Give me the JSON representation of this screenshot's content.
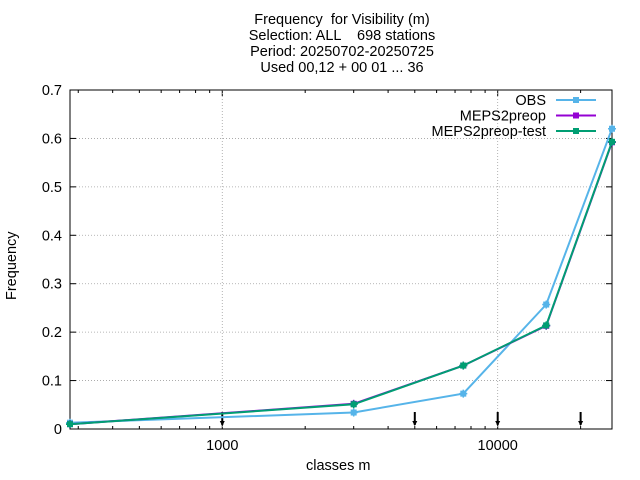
{
  "title_lines": [
    "Frequency  for Visibility (m)",
    "Selection: ALL    698 stations",
    "Period: 20250702-20250725",
    "Used 00,12 + 00 01 ... 36"
  ],
  "chart_data": {
    "type": "line",
    "title": "Frequency  for Visibility (m)",
    "xlabel": "classes m",
    "ylabel": "Frequency",
    "x_scale": "log",
    "xlim": [
      280,
      26000
    ],
    "ylim": [
      0,
      0.7
    ],
    "grid": true,
    "legend_position": "top-right",
    "x_ticks": [
      {
        "value": 1000,
        "label": "1000"
      },
      {
        "value": 10000,
        "label": "10000"
      }
    ],
    "y_ticks": [
      {
        "value": 0,
        "label": "0"
      },
      {
        "value": 0.1,
        "label": "0.1"
      },
      {
        "value": 0.2,
        "label": "0.2"
      },
      {
        "value": 0.3,
        "label": "0.3"
      },
      {
        "value": 0.4,
        "label": "0.4"
      },
      {
        "value": 0.5,
        "label": "0.5"
      },
      {
        "value": 0.6,
        "label": "0.6"
      },
      {
        "value": 0.7,
        "label": "0.7"
      }
    ],
    "class_boundaries": [
      1000,
      5000,
      10000,
      20000
    ],
    "series": [
      {
        "name": "OBS",
        "color": "#56b4e9",
        "x": [
          280,
          3000,
          7500,
          15000,
          26000
        ],
        "y": [
          0.013,
          0.034,
          0.073,
          0.257,
          0.62
        ]
      },
      {
        "name": "MEPS2preop",
        "color": "#9400d3",
        "x": [
          280,
          3000,
          7500,
          15000,
          26000
        ],
        "y": [
          0.01,
          0.052,
          0.131,
          0.213,
          0.592
        ]
      },
      {
        "name": "MEPS2preop-test",
        "color": "#009e73",
        "x": [
          280,
          3000,
          7500,
          15000,
          26000
        ],
        "y": [
          0.01,
          0.051,
          0.131,
          0.214,
          0.593
        ]
      }
    ]
  }
}
